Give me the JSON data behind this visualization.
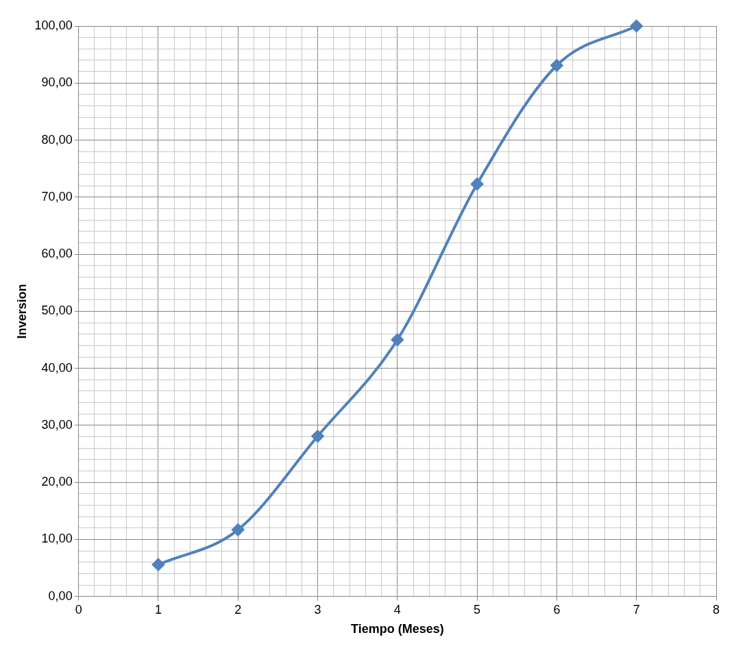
{
  "chart_data": {
    "type": "line",
    "xlabel": "Tiempo (Meses)",
    "ylabel": "Inversion",
    "x": [
      1,
      2,
      3,
      4,
      5,
      6,
      7
    ],
    "series": [
      {
        "color": "#4f81bd",
        "values": [
          5.6,
          11.7,
          28.1,
          45,
          72.3,
          93.1,
          100
        ]
      }
    ],
    "marker": "diamond",
    "line_style": "solid",
    "grid": true,
    "legend": false,
    "xlim": [
      0,
      8
    ],
    "xticks": [
      0,
      {
        "value": 0.2,
        "label": null
      },
      {
        "value": 0.4,
        "label": null
      },
      {
        "value": 0.6,
        "label": null
      },
      {
        "value": 0.8,
        "label": null
      },
      1,
      {
        "value": 1.2,
        "label": null
      },
      {
        "value": 1.4,
        "label": null
      },
      {
        "value": 1.6,
        "label": null
      },
      {
        "value": 1.8,
        "label": null
      },
      2,
      {
        "value": 2.2,
        "label": null
      },
      {
        "value": 2.4,
        "label": null
      },
      {
        "value": 2.6,
        "label": null
      },
      {
        "value": 2.8,
        "label": null
      },
      3,
      {
        "value": 3.2,
        "label": null
      },
      {
        "value": 3.4,
        "label": null
      },
      {
        "value": 3.6,
        "label": null
      },
      {
        "value": 3.8,
        "label": null
      },
      4,
      {
        "value": 4.2,
        "label": null
      },
      {
        "value": 4.4,
        "label": null
      },
      {
        "value": 4.6,
        "label": null
      },
      {
        "value": 4.8,
        "label": null
      },
      5,
      {
        "value": 5.2,
        "label": null
      },
      {
        "value": 5.4,
        "label": null
      },
      {
        "value": 5.6,
        "label": null
      },
      {
        "value": 5.8,
        "label": null
      },
      6,
      {
        "value": 6.2,
        "label": null
      },
      {
        "value": 6.4,
        "label": null
      },
      {
        "value": 6.6,
        "label": null
      },
      {
        "value": 6.8,
        "label": null
      },
      7,
      {
        "value": 7.2,
        "label": null
      },
      {
        "value": 7.4,
        "label": null
      },
      {
        "value": 7.6,
        "label": null
      },
      {
        "value": 7.8,
        "label": null
      },
      8
    ],
    "ylim": [
      0,
      100
    ],
    "yticks": [
      {
        "value": 0,
        "label": "0,00"
      },
      {
        "value": 2,
        "label": null
      },
      {
        "value": 4,
        "label": null
      },
      {
        "value": 6,
        "label": null
      },
      {
        "value": 8,
        "label": null
      },
      {
        "value": 10,
        "label": "10,00"
      },
      {
        "value": 12,
        "label": null
      },
      {
        "value": 14,
        "label": null
      },
      {
        "value": 16,
        "label": null
      },
      {
        "value": 18,
        "label": null
      },
      {
        "value": 20,
        "label": "20,00"
      },
      {
        "value": 22,
        "label": null
      },
      {
        "value": 24,
        "label": null
      },
      {
        "value": 26,
        "label": null
      },
      {
        "value": 28,
        "label": null
      },
      {
        "value": 30,
        "label": "30,00"
      },
      {
        "value": 32,
        "label": null
      },
      {
        "value": 34,
        "label": null
      },
      {
        "value": 36,
        "label": null
      },
      {
        "value": 38,
        "label": null
      },
      {
        "value": 40,
        "label": "40,00"
      },
      {
        "value": 42,
        "label": null
      },
      {
        "value": 44,
        "label": null
      },
      {
        "value": 46,
        "label": null
      },
      {
        "value": 48,
        "label": null
      },
      {
        "value": 50,
        "label": "50,00"
      },
      {
        "value": 52,
        "label": null
      },
      {
        "value": 54,
        "label": null
      },
      {
        "value": 56,
        "label": null
      },
      {
        "value": 58,
        "label": null
      },
      {
        "value": 60,
        "label": "60,00"
      },
      {
        "value": 62,
        "label": null
      },
      {
        "value": 64,
        "label": null
      },
      {
        "value": 66,
        "label": null
      },
      {
        "value": 68,
        "label": null
      },
      {
        "value": 70,
        "label": "70,00"
      },
      {
        "value": 72,
        "label": null
      },
      {
        "value": 74,
        "label": null
      },
      {
        "value": 76,
        "label": null
      },
      {
        "value": 78,
        "label": null
      },
      {
        "value": 80,
        "label": "80,00"
      },
      {
        "value": 82,
        "label": null
      },
      {
        "value": 84,
        "label": null
      },
      {
        "value": 86,
        "label": null
      },
      {
        "value": 88,
        "label": null
      },
      {
        "value": 90,
        "label": "90,00"
      },
      {
        "value": 92,
        "label": null
      },
      {
        "value": 94,
        "label": null
      },
      {
        "value": 96,
        "label": null
      },
      {
        "value": 98,
        "label": null
      },
      {
        "value": 100,
        "label": "100,00"
      }
    ]
  }
}
